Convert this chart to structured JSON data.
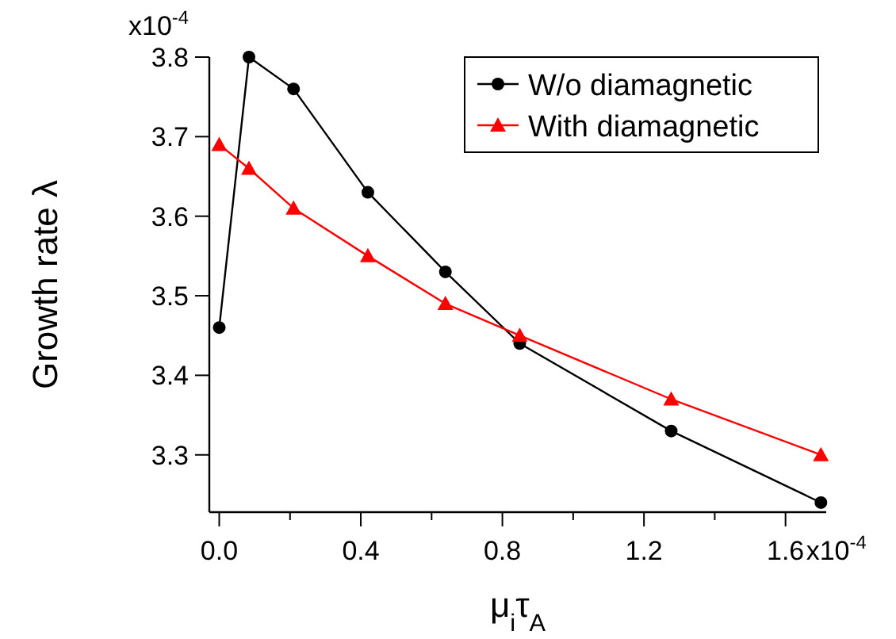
{
  "chart_data": {
    "type": "line",
    "xlabel": "μ$_{i}$τ$_{A}$",
    "ylabel": "Growth rate λ",
    "annotations": [
      "x10$^{-4}$",
      "x10$^{-4}$"
    ],
    "xlim": [
      -0.028,
      1.715
    ],
    "ylim": [
      3.228,
      3.8
    ],
    "xticks": [
      {
        "value": 0,
        "label": "0.0"
      },
      {
        "value": 0.2,
        "label": null
      },
      0.4,
      {
        "value": 0.6,
        "label": null
      },
      0.8,
      {
        "value": 1.0,
        "label": null
      },
      1.2,
      {
        "value": 1.4,
        "label": null
      },
      1.6
    ],
    "yticks": [
      3.3,
      3.4,
      3.5,
      3.6,
      3.7,
      3.8
    ],
    "grid": false,
    "legend": "top right",
    "series": [
      {
        "name": "W/o diamagnetic",
        "color": "#000000",
        "marker": "circle",
        "x": [
          0,
          0.084,
          0.21,
          0.42,
          0.639,
          0.849,
          1.277,
          1.7
        ],
        "values": [
          3.46,
          3.8,
          3.76,
          3.63,
          3.53,
          3.44,
          3.33,
          3.24
        ]
      },
      {
        "name": "With diamagnetic",
        "color": "#ff0000",
        "marker": "triangle",
        "x": [
          0,
          0.084,
          0.21,
          0.42,
          0.639,
          0.849,
          1.277,
          1.7
        ],
        "values": [
          3.69,
          3.66,
          3.61,
          3.55,
          3.49,
          3.45,
          3.37,
          3.3
        ]
      }
    ]
  }
}
